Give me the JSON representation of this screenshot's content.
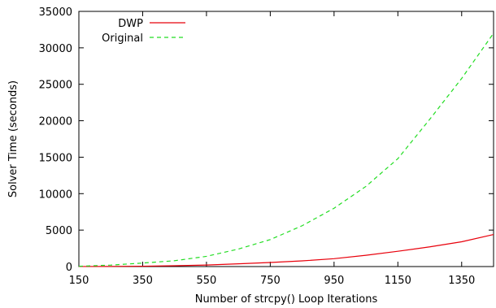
{
  "chart_data": {
    "type": "line",
    "title": "",
    "xlabel": "Number of strcpy() Loop Iterations",
    "ylabel": "Solver Time (seconds)",
    "xlim": [
      150,
      1450
    ],
    "ylim": [
      0,
      35000
    ],
    "x_ticks": [
      150,
      350,
      550,
      750,
      950,
      1150,
      1350
    ],
    "y_ticks": [
      0,
      5000,
      10000,
      15000,
      20000,
      25000,
      30000,
      35000
    ],
    "grid": false,
    "legend_position": "top-left",
    "series": [
      {
        "name": "DWP",
        "color": "#e8000b",
        "dash": "solid",
        "x": [
          150,
          250,
          350,
          450,
          550,
          650,
          750,
          850,
          950,
          1050,
          1150,
          1250,
          1350,
          1450
        ],
        "y": [
          5,
          20,
          50,
          110,
          210,
          380,
          560,
          780,
          1080,
          1550,
          2100,
          2700,
          3400,
          4400
        ]
      },
      {
        "name": "Original",
        "color": "#22dd22",
        "dash": "dashed",
        "x": [
          150,
          250,
          350,
          450,
          550,
          650,
          750,
          850,
          950,
          1050,
          1150,
          1250,
          1350,
          1450
        ],
        "y": [
          40,
          200,
          480,
          800,
          1400,
          2400,
          3700,
          5600,
          8000,
          11000,
          14800,
          20200,
          25800,
          32000
        ]
      }
    ]
  }
}
